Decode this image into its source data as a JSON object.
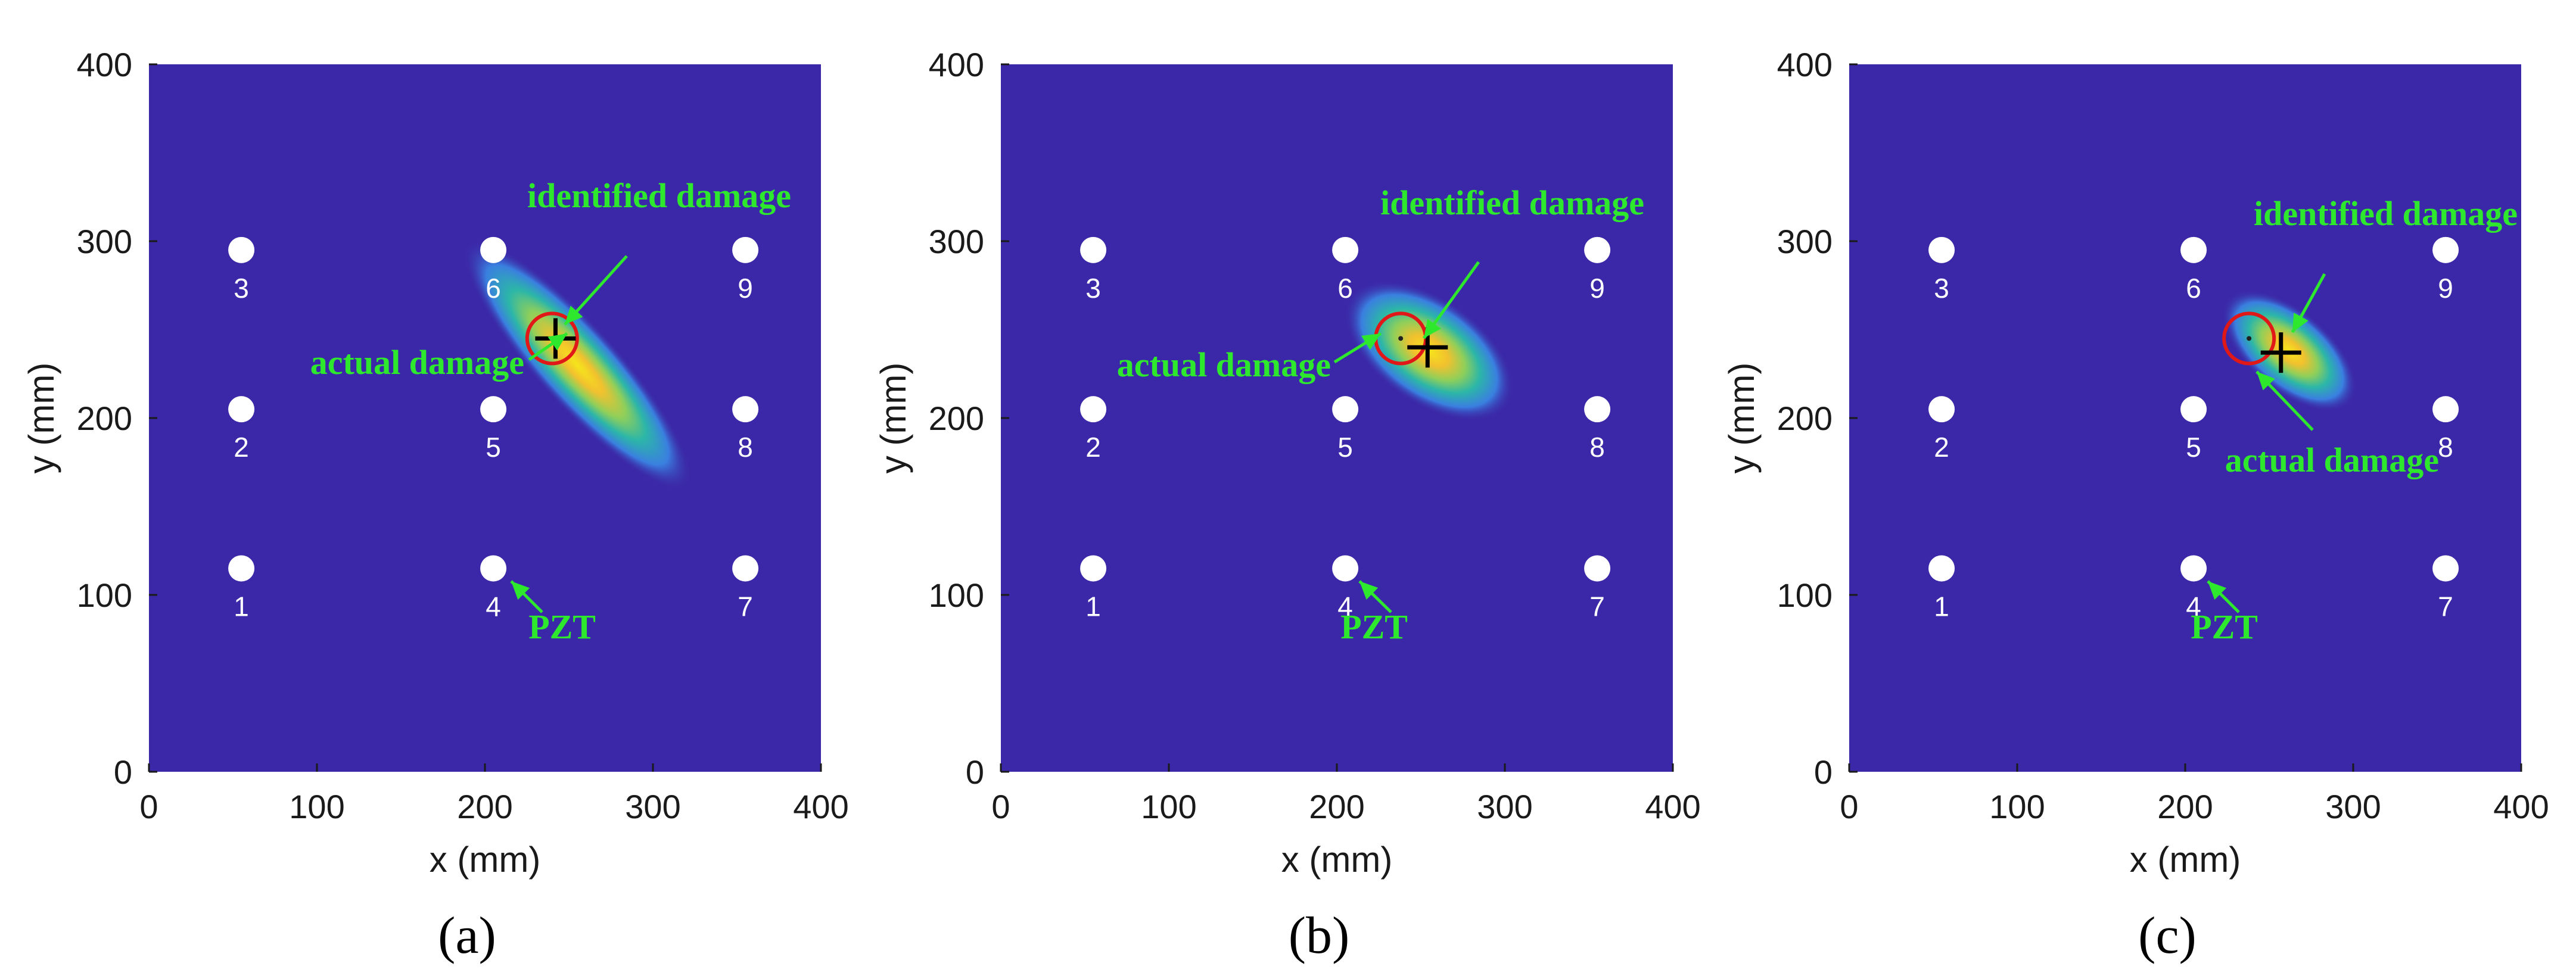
{
  "colors": {
    "background_field": "#3b28a8",
    "annotation": "#2ee82e",
    "actual_marker": "#e01818",
    "identified_marker": "#000000",
    "pzt_fill": "#ffffff"
  },
  "chart_data": [
    {
      "type": "heatmap",
      "caption": "(a)",
      "xlabel": "x (mm)",
      "ylabel": "y (mm)",
      "xlim": [
        0,
        400
      ],
      "ylim": [
        0,
        400
      ],
      "xticks": [
        "0",
        "100",
        "200",
        "300",
        "400"
      ],
      "yticks": [
        "0",
        "100",
        "200",
        "300",
        "400"
      ],
      "pzt": [
        {
          "id": "1",
          "x": 55,
          "y": 115
        },
        {
          "id": "2",
          "x": 55,
          "y": 205
        },
        {
          "id": "3",
          "x": 55,
          "y": 295
        },
        {
          "id": "4",
          "x": 205,
          "y": 115
        },
        {
          "id": "5",
          "x": 205,
          "y": 205
        },
        {
          "id": "6",
          "x": 205,
          "y": 295
        },
        {
          "id": "7",
          "x": 355,
          "y": 115
        },
        {
          "id": "8",
          "x": 355,
          "y": 205
        },
        {
          "id": "9",
          "x": 355,
          "y": 295
        }
      ],
      "hotspot": {
        "x": 255,
        "y": 230,
        "major": 85,
        "minor": 20,
        "angle_deg": -48
      },
      "actual_damage": {
        "x": 240,
        "y": 245
      },
      "identified_damage": {
        "x": 242,
        "y": 245
      },
      "annotations": {
        "identified_damage": "identified damage",
        "actual_damage": "actual damage",
        "pzt": "PZT"
      }
    },
    {
      "type": "heatmap",
      "caption": "(b)",
      "xlabel": "x (mm)",
      "ylabel": "y (mm)",
      "xlim": [
        0,
        400
      ],
      "ylim": [
        0,
        400
      ],
      "xticks": [
        "0",
        "100",
        "200",
        "300",
        "400"
      ],
      "yticks": [
        "0",
        "100",
        "200",
        "300",
        "400"
      ],
      "pzt": [
        {
          "id": "1",
          "x": 55,
          "y": 115
        },
        {
          "id": "2",
          "x": 55,
          "y": 205
        },
        {
          "id": "3",
          "x": 55,
          "y": 295
        },
        {
          "id": "4",
          "x": 205,
          "y": 115
        },
        {
          "id": "5",
          "x": 205,
          "y": 205
        },
        {
          "id": "6",
          "x": 205,
          "y": 295
        },
        {
          "id": "7",
          "x": 355,
          "y": 115
        },
        {
          "id": "8",
          "x": 355,
          "y": 205
        },
        {
          "id": "9",
          "x": 355,
          "y": 295
        }
      ],
      "hotspot": {
        "x": 255,
        "y": 238,
        "major": 50,
        "minor": 26,
        "angle_deg": -35
      },
      "actual_damage": {
        "x": 238,
        "y": 245
      },
      "identified_damage": {
        "x": 254,
        "y": 240
      },
      "annotations": {
        "identified_damage": "identified damage",
        "actual_damage": "actual damage",
        "pzt": "PZT"
      }
    },
    {
      "type": "heatmap",
      "caption": "(c)",
      "xlabel": "x (mm)",
      "ylabel": "y (mm)",
      "xlim": [
        0,
        400
      ],
      "ylim": [
        0,
        400
      ],
      "xticks": [
        "0",
        "100",
        "200",
        "300",
        "400"
      ],
      "yticks": [
        "0",
        "100",
        "200",
        "300",
        "400"
      ],
      "pzt": [
        {
          "id": "1",
          "x": 55,
          "y": 115
        },
        {
          "id": "2",
          "x": 55,
          "y": 205
        },
        {
          "id": "3",
          "x": 55,
          "y": 295
        },
        {
          "id": "4",
          "x": 205,
          "y": 115
        },
        {
          "id": "5",
          "x": 205,
          "y": 205
        },
        {
          "id": "6",
          "x": 205,
          "y": 295
        },
        {
          "id": "7",
          "x": 355,
          "y": 115
        },
        {
          "id": "8",
          "x": 355,
          "y": 205
        },
        {
          "id": "9",
          "x": 355,
          "y": 295
        }
      ],
      "hotspot": {
        "x": 262,
        "y": 238,
        "major": 42,
        "minor": 20,
        "angle_deg": -40
      },
      "actual_damage": {
        "x": 238,
        "y": 245
      },
      "identified_damage": {
        "x": 257,
        "y": 237
      },
      "annotations": {
        "identified_damage": "identified damage",
        "actual_damage": "actual damage",
        "pzt": "PZT"
      }
    }
  ]
}
